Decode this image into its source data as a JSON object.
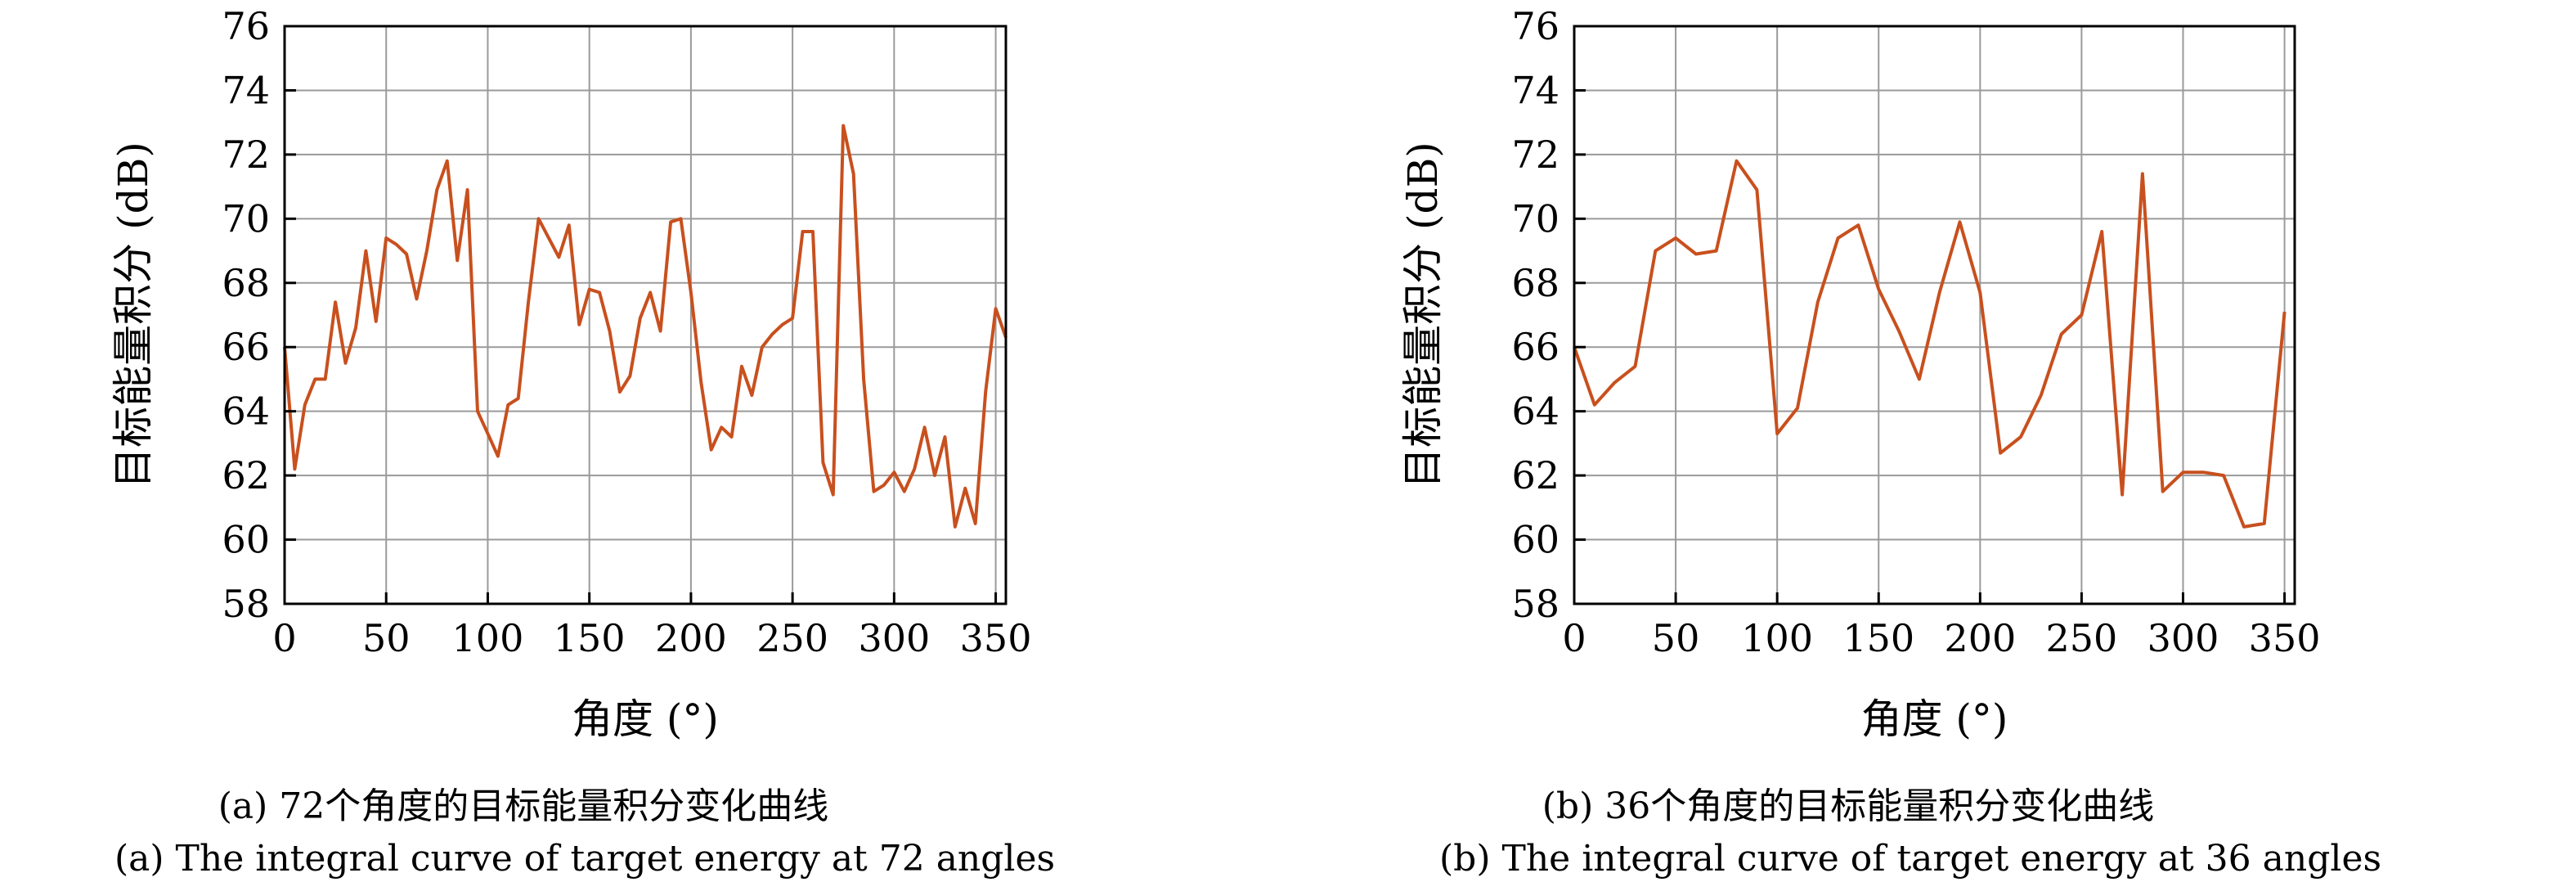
{
  "chart_data": [
    {
      "type": "line",
      "xlabel": "角度 (°)",
      "ylabel": "目标能量积分 (dB)",
      "xlim": [
        0,
        355
      ],
      "ylim": [
        58,
        76
      ],
      "xticks": [
        0,
        50,
        100,
        150,
        200,
        250,
        300,
        350
      ],
      "yticks": [
        58,
        60,
        62,
        64,
        66,
        68,
        70,
        72,
        74,
        76
      ],
      "grid": true,
      "line_color": "#c8501e",
      "caption_zh": "(a) 72个角度的目标能量积分变化曲线",
      "caption_en": "(a) The integral curve of target energy at 72 angles",
      "series": [
        {
          "x": [
            0,
            5,
            10,
            15,
            20,
            25,
            30,
            35,
            40,
            45,
            50,
            55,
            60,
            65,
            70,
            75,
            80,
            85,
            90,
            95,
            100,
            105,
            110,
            115,
            120,
            125,
            130,
            135,
            140,
            145,
            150,
            155,
            160,
            165,
            170,
            175,
            180,
            185,
            190,
            195,
            200,
            205,
            210,
            215,
            220,
            225,
            230,
            235,
            240,
            245,
            250,
            255,
            260,
            265,
            270,
            275,
            280,
            285,
            290,
            295,
            300,
            305,
            310,
            315,
            320,
            325,
            330,
            335,
            340,
            345,
            350,
            355
          ],
          "y": [
            66.0,
            62.2,
            64.2,
            65.0,
            65.0,
            67.4,
            65.5,
            66.6,
            69.0,
            66.8,
            69.4,
            69.2,
            68.9,
            67.5,
            69.0,
            70.9,
            71.8,
            68.7,
            70.9,
            64.0,
            63.3,
            62.6,
            64.2,
            64.4,
            67.4,
            70.0,
            69.4,
            68.8,
            69.8,
            66.7,
            67.8,
            67.7,
            66.5,
            64.6,
            65.1,
            66.9,
            67.7,
            66.5,
            69.9,
            70.0,
            67.7,
            64.9,
            62.8,
            63.5,
            63.2,
            65.4,
            64.5,
            66.0,
            66.4,
            66.7,
            66.9,
            69.6,
            69.6,
            62.4,
            61.4,
            72.9,
            71.4,
            65.0,
            61.5,
            61.7,
            62.1,
            61.5,
            62.2,
            63.5,
            62.0,
            63.2,
            60.4,
            61.6,
            60.5,
            64.6,
            67.2,
            66.3
          ]
        }
      ]
    },
    {
      "type": "line",
      "xlabel": "角度 (°)",
      "ylabel": "目标能量积分 (dB)",
      "xlim": [
        0,
        355
      ],
      "ylim": [
        58,
        76
      ],
      "xticks": [
        0,
        50,
        100,
        150,
        200,
        250,
        300,
        350
      ],
      "yticks": [
        58,
        60,
        62,
        64,
        66,
        68,
        70,
        72,
        74,
        76
      ],
      "grid": true,
      "line_color": "#c8501e",
      "caption_zh": "(b) 36个角度的目标能量积分变化曲线",
      "caption_en": "(b) The integral curve of target energy at 36 angles",
      "series": [
        {
          "x": [
            0,
            10,
            20,
            30,
            40,
            50,
            60,
            70,
            80,
            90,
            100,
            110,
            120,
            130,
            140,
            150,
            160,
            170,
            180,
            190,
            200,
            210,
            220,
            230,
            240,
            250,
            260,
            270,
            280,
            290,
            300,
            310,
            320,
            330,
            340,
            350
          ],
          "y": [
            66.0,
            64.2,
            64.9,
            65.4,
            69.0,
            69.4,
            68.9,
            69.0,
            71.8,
            70.9,
            63.3,
            64.1,
            67.4,
            69.4,
            69.8,
            67.8,
            66.5,
            65.0,
            67.7,
            69.9,
            67.7,
            62.7,
            63.2,
            64.5,
            66.4,
            67.0,
            69.6,
            61.4,
            71.4,
            61.5,
            62.1,
            62.1,
            62.0,
            60.4,
            60.5,
            67.1
          ]
        }
      ]
    }
  ]
}
